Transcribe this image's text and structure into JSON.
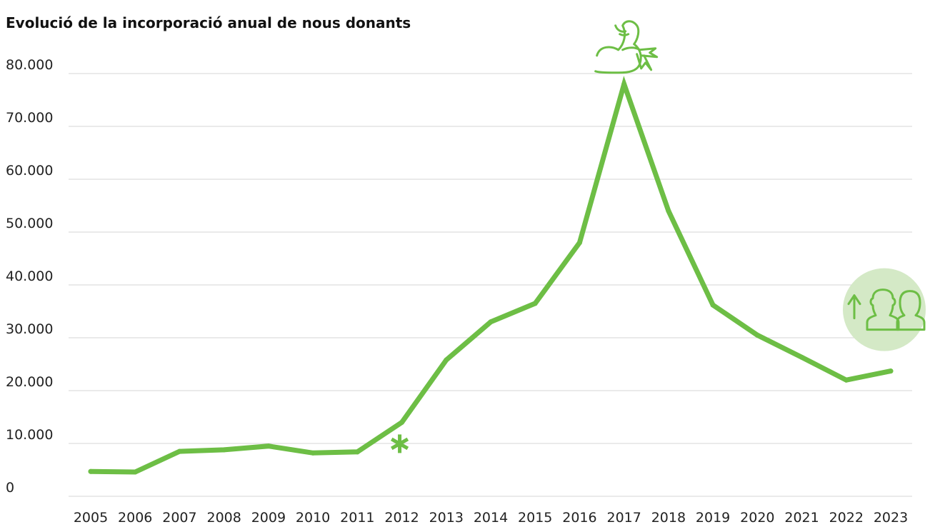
{
  "chart_data": {
    "type": "line",
    "title": "Evolució de la incorporació anual de nous donants",
    "xlabel": "",
    "ylabel": "",
    "categories": [
      "2005",
      "2006",
      "2007",
      "2008",
      "2009",
      "2010",
      "2011",
      "2012",
      "2013",
      "2014",
      "2015",
      "2016",
      "2017",
      "2018",
      "2019",
      "2020",
      "2021",
      "2022",
      "2023"
    ],
    "series": [
      {
        "values": [
          4700,
          4600,
          8500,
          8800,
          9500,
          8200,
          8400,
          14000,
          25800,
          33000,
          36500,
          48000,
          78000,
          54000,
          36200,
          30500,
          26300,
          22000,
          23700
        ]
      }
    ],
    "y_ticks": [
      "0",
      "10.000",
      "20.000",
      "30.000",
      "40.000",
      "50.000",
      "60.000",
      "70.000",
      "80.000"
    ],
    "ylim": [
      0,
      80000
    ],
    "grid": "horizontal",
    "legend": "none",
    "annotations": [
      {
        "category": "2012",
        "icon": "asterisk-icon"
      },
      {
        "category": "2017",
        "icon": "flexed-arm-ribbon-icon"
      },
      {
        "category": "2023",
        "icon": "people-growth-icon"
      }
    ],
    "colors": {
      "line": "#6dbe45",
      "badge": "#d4e9c6",
      "grid": "#d4d4d4",
      "text": "#222222"
    }
  }
}
